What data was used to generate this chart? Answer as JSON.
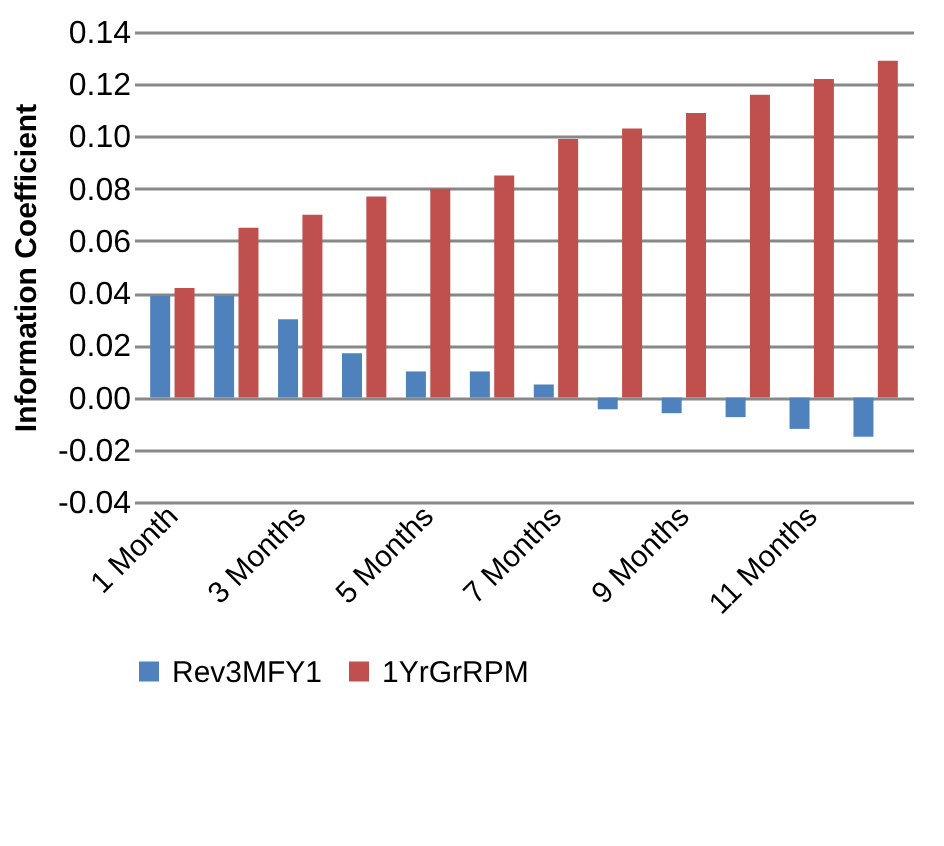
{
  "chart_data": {
    "type": "bar",
    "ylabel": "Information Coefficient",
    "categories": [
      "1 Month",
      null,
      "3 Months",
      null,
      "5 Months",
      null,
      "7 Months",
      null,
      "9 Months",
      null,
      "11 Months",
      null
    ],
    "series": [
      {
        "name": "Rev3MFY1",
        "color": "#4f81bd",
        "values": [
          0.039,
          0.039,
          0.03,
          0.017,
          0.01,
          0.01,
          0.005,
          -0.0045,
          -0.006,
          -0.0075,
          -0.012,
          -0.015
        ]
      },
      {
        "name": "1YrGrRPM",
        "color": "#c0504d",
        "values": [
          0.042,
          0.065,
          0.07,
          0.077,
          0.08,
          0.085,
          0.099,
          0.103,
          0.109,
          0.116,
          0.122,
          0.129
        ]
      }
    ],
    "ylim": [
      -0.04,
      0.14
    ],
    "yticks": [
      {
        "value": -0.04,
        "label": "-0.04"
      },
      {
        "value": -0.02,
        "label": "-0.02"
      },
      {
        "value": 0,
        "label": "0.00"
      },
      {
        "value": 0.02,
        "label": "0.02"
      },
      {
        "value": 0.04,
        "label": "0.04"
      },
      {
        "value": 0.06,
        "label": "0.06"
      },
      {
        "value": 0.08,
        "label": "0.08"
      },
      {
        "value": 0.1,
        "label": "0.10"
      },
      {
        "value": 0.12,
        "label": "0.12"
      },
      {
        "value": 0.14,
        "label": "0.14"
      }
    ],
    "grid": "y",
    "legend": "bottom"
  }
}
